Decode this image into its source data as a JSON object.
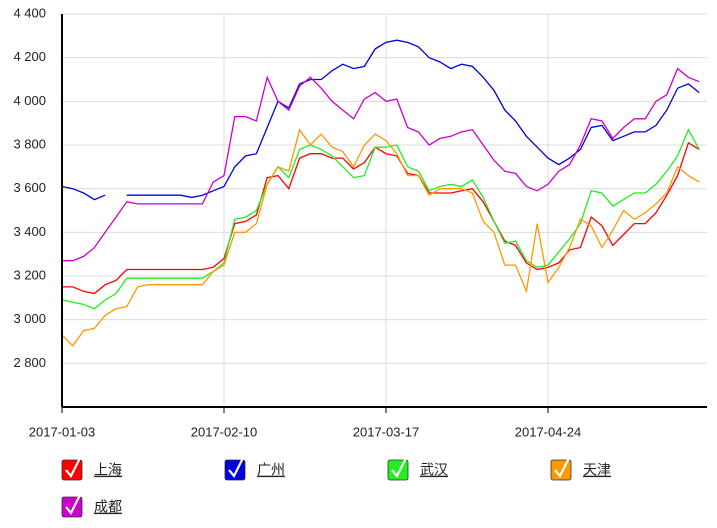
{
  "chart_data": {
    "type": "line",
    "categories": [
      "2017-01-03",
      null,
      null,
      null,
      null,
      null,
      null,
      null,
      null,
      null,
      null,
      null,
      null,
      null,
      null,
      "2017-02-10",
      null,
      null,
      null,
      null,
      null,
      null,
      null,
      null,
      null,
      null,
      null,
      null,
      null,
      null,
      "2017-03-17",
      null,
      null,
      null,
      null,
      null,
      null,
      null,
      null,
      null,
      null,
      null,
      null,
      null,
      null,
      "2017-04-24",
      null,
      null,
      null,
      null,
      null,
      null,
      null,
      null,
      null,
      null,
      null,
      null,
      null,
      null
    ],
    "ylim": [
      2600,
      4400
    ],
    "yticks": [
      {
        "value": 2800,
        "label": "2 800"
      },
      {
        "value": 3000,
        "label": "3 000"
      },
      {
        "value": 3200,
        "label": "3 200"
      },
      {
        "value": 3400,
        "label": "3 400"
      },
      {
        "value": 3600,
        "label": "3 600"
      },
      {
        "value": 3800,
        "label": "3 800"
      },
      {
        "value": 4000,
        "label": "4 000"
      },
      {
        "value": 4200,
        "label": "4 200"
      },
      {
        "value": 4400,
        "label": "4 400"
      }
    ],
    "grid": true,
    "legend": "bottom",
    "series": [
      {
        "name": "上海",
        "color": "#ff0000",
        "values": [
          3150,
          3150,
          3130,
          3120,
          3160,
          3180,
          3230,
          3230,
          3230,
          3230,
          3230,
          3230,
          3230,
          3230,
          3240,
          3280,
          3440,
          3450,
          3480,
          3650,
          3660,
          3600,
          3740,
          3760,
          3760,
          3740,
          3740,
          3690,
          3720,
          3790,
          3760,
          3750,
          3670,
          3660,
          3580,
          3580,
          3580,
          3590,
          3600,
          3540,
          3450,
          3360,
          3340,
          3260,
          3230,
          3240,
          3260,
          3320,
          3330,
          3470,
          3430,
          3340,
          3390,
          3440,
          3440,
          3490,
          3570,
          3660,
          3810,
          3780
        ]
      },
      {
        "name": "广州",
        "color": "#0000e0",
        "values": [
          3610,
          3600,
          3580,
          3550,
          3570,
          null,
          3570,
          3570,
          3570,
          3570,
          3570,
          3570,
          3560,
          3570,
          3590,
          3610,
          3700,
          3750,
          3760,
          3880,
          4000,
          3970,
          4080,
          4100,
          4100,
          4140,
          4170,
          4150,
          4160,
          4240,
          4270,
          4280,
          4270,
          4250,
          4200,
          4180,
          4150,
          4170,
          4160,
          4110,
          4050,
          3960,
          3910,
          3840,
          3790,
          3740,
          3710,
          3740,
          3780,
          3880,
          3890,
          3820,
          3840,
          3860,
          3860,
          3890,
          3960,
          4060,
          4080,
          4040
        ]
      },
      {
        "name": "武汉",
        "color": "#22ee22",
        "values": [
          3090,
          3080,
          3070,
          3050,
          3090,
          3120,
          3190,
          3190,
          3190,
          3190,
          3190,
          3190,
          3190,
          3190,
          3220,
          3260,
          3460,
          3470,
          3500,
          3620,
          3700,
          3650,
          3780,
          3800,
          3780,
          3750,
          3700,
          3650,
          3660,
          3790,
          3790,
          3800,
          3700,
          3680,
          3590,
          3610,
          3620,
          3610,
          3640,
          3560,
          3450,
          3350,
          3360,
          3270,
          3240,
          3250,
          3310,
          3370,
          3440,
          3590,
          3580,
          3520,
          3550,
          3580,
          3580,
          3620,
          3680,
          3750,
          3870,
          3780
        ]
      },
      {
        "name": "天津",
        "color": "#ff9900",
        "values": [
          2930,
          2880,
          2950,
          2960,
          3020,
          3050,
          3060,
          3150,
          3160,
          3160,
          3160,
          3160,
          3160,
          3160,
          3220,
          3250,
          3400,
          3400,
          3440,
          3620,
          3700,
          3680,
          3870,
          3800,
          3850,
          3790,
          3770,
          3700,
          3800,
          3850,
          3820,
          3760,
          3660,
          3660,
          3570,
          3600,
          3600,
          3600,
          3580,
          3450,
          3400,
          3250,
          3250,
          3130,
          3440,
          3170,
          3240,
          3330,
          3460,
          3430,
          3330,
          3410,
          3500,
          3460,
          3490,
          3530,
          3580,
          3700,
          3660,
          3630
        ]
      },
      {
        "name": "成都",
        "color": "#cc00cc",
        "values": [
          3270,
          3270,
          3290,
          3330,
          3400,
          3470,
          3540,
          3530,
          3530,
          3530,
          3530,
          3530,
          3530,
          3530,
          3630,
          3660,
          3930,
          3930,
          3910,
          4110,
          4000,
          3960,
          4070,
          4110,
          4060,
          4000,
          3960,
          3920,
          4010,
          4040,
          4000,
          4010,
          3880,
          3860,
          3800,
          3830,
          3840,
          3860,
          3870,
          3800,
          3730,
          3680,
          3670,
          3610,
          3590,
          3620,
          3680,
          3710,
          3800,
          3920,
          3910,
          3830,
          3880,
          3920,
          3920,
          4000,
          4030,
          4150,
          4110,
          4090
        ]
      }
    ]
  }
}
